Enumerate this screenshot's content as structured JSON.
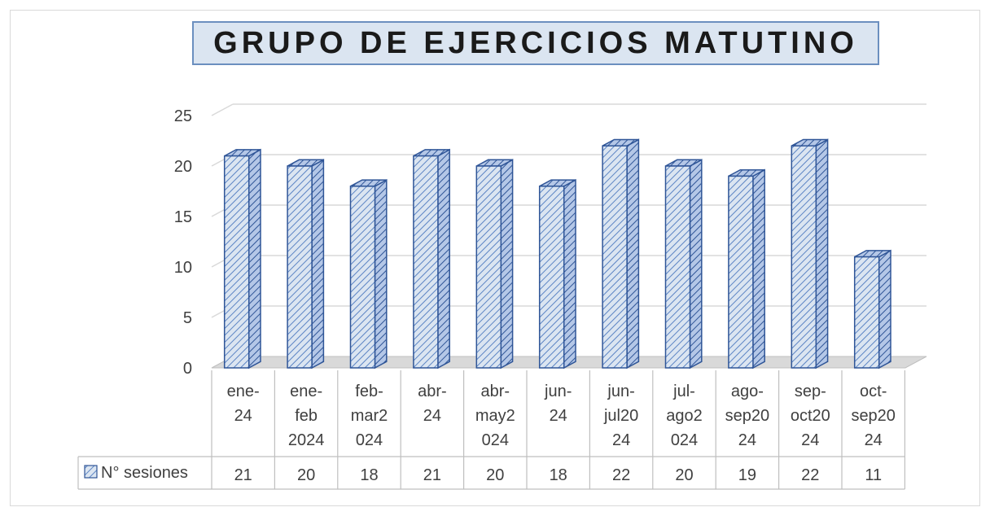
{
  "chart_data": {
    "type": "bar",
    "title": "GRUPO DE EJERCICIOS MATUTINO",
    "categories": [
      [
        "ene-",
        "24"
      ],
      [
        "ene-",
        "feb",
        "2024"
      ],
      [
        "feb-",
        "mar2",
        "024"
      ],
      [
        "abr-",
        "24"
      ],
      [
        "abr-",
        "may2",
        "024"
      ],
      [
        "jun-",
        "24"
      ],
      [
        "jun-",
        "jul20",
        "24"
      ],
      [
        "jul-",
        "ago2",
        "024"
      ],
      [
        "ago-",
        "sep20",
        "24"
      ],
      [
        "sep-",
        "oct20",
        "24"
      ],
      [
        "oct-",
        "sep20",
        "24"
      ]
    ],
    "series": [
      {
        "name": "N° sesiones",
        "values": [
          21,
          20,
          18,
          21,
          20,
          18,
          22,
          20,
          19,
          22,
          11
        ]
      }
    ],
    "ylim": [
      0,
      25
    ],
    "yticks": [
      0,
      5,
      10,
      15,
      20,
      25
    ],
    "grid": true,
    "legend": "data-table",
    "colors": {
      "fill": "#dbe5f1",
      "hatch": "#5b84c4",
      "edge": "#2f5597",
      "grid": "#d9d9d9"
    }
  }
}
